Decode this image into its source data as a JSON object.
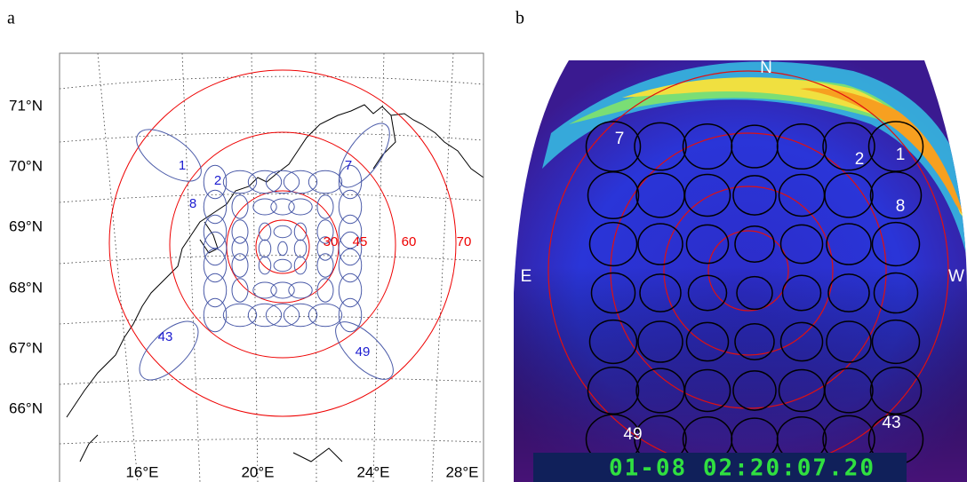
{
  "panels": [
    {
      "label": "a",
      "latitude_labels": [
        "71°N",
        "70°N",
        "69°N",
        "68°N",
        "67°N",
        "66°N"
      ],
      "longitude_labels": [
        "16°E",
        "20°E",
        "24°E",
        "28°E"
      ],
      "ring_labels": [
        30,
        45,
        60,
        70
      ],
      "beam_labels": [
        "1",
        "2",
        "7",
        "8",
        "43",
        "49"
      ]
    },
    {
      "label": "b",
      "compass": [
        "N",
        "E",
        "W"
      ],
      "beam_labels": [
        "7",
        "2",
        "1",
        "8",
        "49",
        "43"
      ],
      "timestamp": "01-08 02:20:07.20"
    }
  ]
}
